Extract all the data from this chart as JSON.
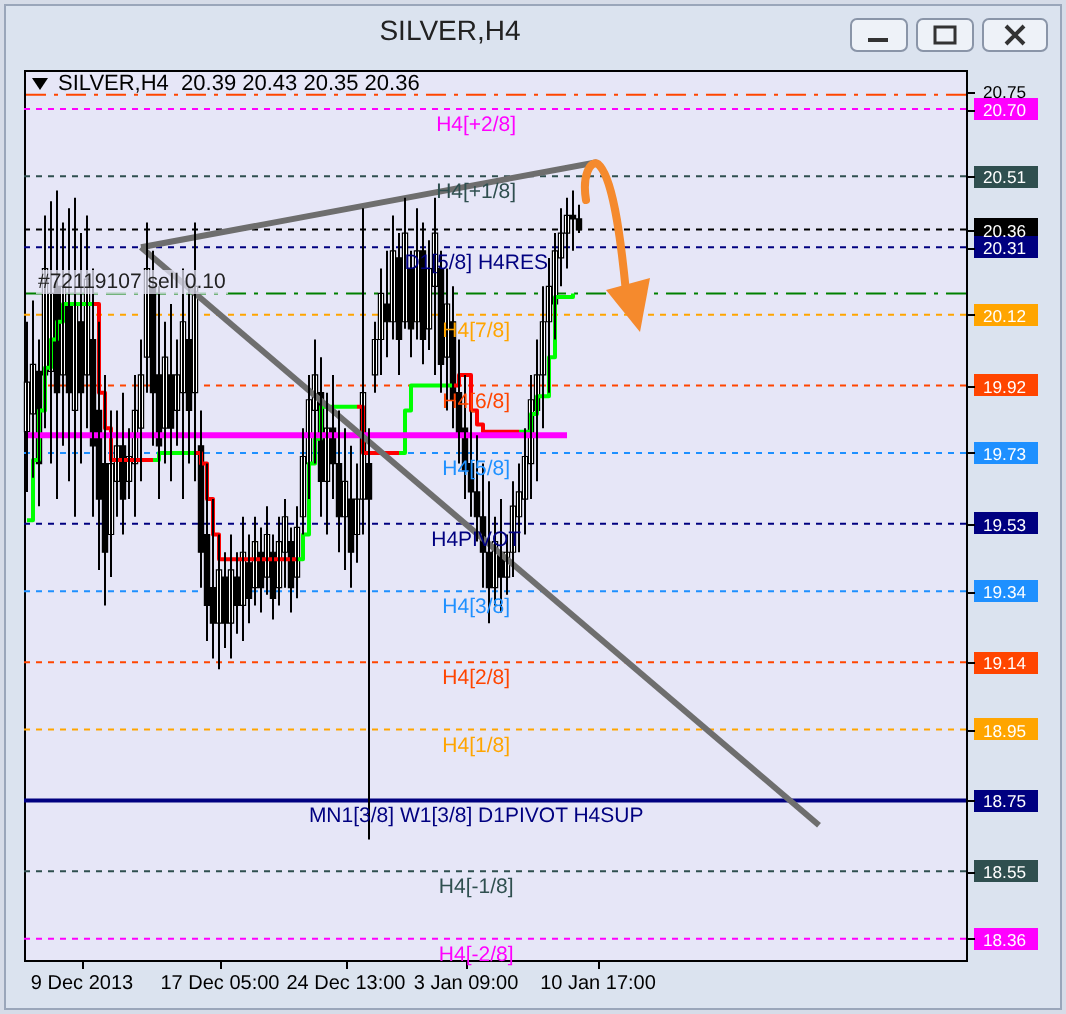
{
  "chart_data": {
    "type": "candlestick",
    "title": "SILVER,H4",
    "subtitle": "SILVER,H4  20.39 20.43 20.35 20.36",
    "categories": [
      null,
      null,
      null,
      null,
      null,
      null,
      null,
      null,
      null,
      "9 Dec 2013",
      null,
      null,
      null,
      null,
      null,
      null,
      null,
      null,
      null,
      null,
      null,
      null,
      null,
      null,
      null,
      null,
      null,
      null,
      null,
      null,
      null,
      null,
      "17 Dec 05:00",
      null,
      null,
      null,
      null,
      null,
      null,
      null,
      null,
      null,
      null,
      null,
      null,
      null,
      null,
      null,
      null,
      null,
      null,
      null,
      null,
      "24 Dec 13:00",
      null,
      null,
      null,
      null,
      null,
      null,
      null,
      null,
      null,
      null,
      null,
      null,
      null,
      null,
      null,
      null,
      null,
      null,
      null,
      "3 Jan 09:00",
      null,
      null,
      null,
      null,
      null,
      null,
      null,
      null,
      null,
      null,
      null,
      null,
      null,
      null,
      null,
      null,
      null,
      null,
      null,
      null,
      null,
      "10 Jan 17:00",
      null,
      null,
      null,
      null,
      null,
      null,
      null,
      null,
      null,
      null,
      null,
      null,
      null,
      null,
      null,
      null,
      null,
      null,
      null,
      null,
      null,
      null,
      null,
      null,
      null,
      null,
      null,
      null,
      null,
      null,
      null,
      null,
      null,
      null,
      null,
      null,
      null,
      null,
      null,
      null,
      null,
      null,
      null,
      null,
      null,
      null,
      null,
      null,
      null,
      null,
      null,
      null,
      null,
      null,
      null,
      null,
      null,
      null,
      null,
      null,
      null
    ],
    "ohlc": [
      [
        19.79,
        20.1,
        19.62,
        19.93
      ],
      [
        19.84,
        20.16,
        19.66,
        19.98
      ],
      [
        19.96,
        20.05,
        19.58,
        19.7
      ],
      [
        19.95,
        20.4,
        19.8,
        20.25
      ],
      [
        19.96,
        20.44,
        19.7,
        20.18
      ],
      [
        20.2,
        20.47,
        19.6,
        19.9
      ],
      [
        19.95,
        20.38,
        19.75,
        20.2
      ],
      [
        20.15,
        20.42,
        19.65,
        19.9
      ],
      [
        19.85,
        20.45,
        19.55,
        20.15
      ],
      [
        20.1,
        20.35,
        19.7,
        19.9
      ],
      [
        19.95,
        20.4,
        19.8,
        20.22
      ],
      [
        20.05,
        20.25,
        19.55,
        19.75
      ],
      [
        19.85,
        20.1,
        19.4,
        19.6
      ],
      [
        19.7,
        19.95,
        19.3,
        19.45
      ],
      [
        19.5,
        19.85,
        19.38,
        19.7
      ],
      [
        19.65,
        19.85,
        19.55,
        19.75
      ],
      [
        19.75,
        19.9,
        19.5,
        19.6
      ],
      [
        19.65,
        19.8,
        19.6,
        19.72
      ],
      [
        19.7,
        19.95,
        19.55,
        19.85
      ],
      [
        19.8,
        20.05,
        19.65,
        19.95
      ],
      [
        20.0,
        20.38,
        19.9,
        20.25
      ],
      [
        20.2,
        20.3,
        19.75,
        19.9
      ],
      [
        19.95,
        20.2,
        19.6,
        19.75
      ],
      [
        19.8,
        20.1,
        19.7,
        20.0
      ],
      [
        19.95,
        20.15,
        19.65,
        19.8
      ],
      [
        19.85,
        20.05,
        19.75,
        19.95
      ],
      [
        19.9,
        20.25,
        19.6,
        20.1
      ],
      [
        20.05,
        20.2,
        19.7,
        19.85
      ],
      [
        19.9,
        20.38,
        19.65,
        20.2
      ],
      [
        19.75,
        19.85,
        19.35,
        19.45
      ],
      [
        19.5,
        19.7,
        19.2,
        19.3
      ],
      [
        19.35,
        19.6,
        19.15,
        19.25
      ],
      [
        19.25,
        19.5,
        19.12,
        19.4
      ],
      [
        19.38,
        19.45,
        19.18,
        19.25
      ],
      [
        19.25,
        19.5,
        19.15,
        19.4
      ],
      [
        19.38,
        19.45,
        19.22,
        19.3
      ],
      [
        19.3,
        19.55,
        19.2,
        19.45
      ],
      [
        19.42,
        19.5,
        19.25,
        19.32
      ],
      [
        19.35,
        19.55,
        19.3,
        19.48
      ],
      [
        19.45,
        19.52,
        19.28,
        19.35
      ],
      [
        19.38,
        19.58,
        19.33,
        19.5
      ],
      [
        19.45,
        19.5,
        19.26,
        19.32
      ],
      [
        19.35,
        19.55,
        19.3,
        19.48
      ],
      [
        19.45,
        19.6,
        19.35,
        19.55
      ],
      [
        19.48,
        19.52,
        19.28,
        19.35
      ],
      [
        19.38,
        19.58,
        19.32,
        19.52
      ],
      [
        19.55,
        19.8,
        19.5,
        19.72
      ],
      [
        19.7,
        19.95,
        19.6,
        19.88
      ],
      [
        19.85,
        20.05,
        19.7,
        19.95
      ],
      [
        19.9,
        20.0,
        19.55,
        19.65
      ],
      [
        19.65,
        19.9,
        19.5,
        19.8
      ],
      [
        19.8,
        19.95,
        19.6,
        19.7
      ],
      [
        19.7,
        19.85,
        19.45,
        19.55
      ],
      [
        19.55,
        19.8,
        19.4,
        19.65
      ],
      [
        19.6,
        19.75,
        19.35,
        19.45
      ],
      [
        19.5,
        19.7,
        19.42,
        19.6
      ],
      [
        19.6,
        20.42,
        19.5,
        19.9
      ],
      [
        19.7,
        19.8,
        18.64,
        19.6
      ],
      [
        19.95,
        20.1,
        19.9,
        20.05
      ],
      [
        20.05,
        20.25,
        19.95,
        20.18
      ],
      [
        20.15,
        20.3,
        20.0,
        20.1
      ],
      [
        20.1,
        20.4,
        20.05,
        20.3
      ],
      [
        20.28,
        20.35,
        19.95,
        20.05
      ],
      [
        20.1,
        20.45,
        20.08,
        20.35
      ],
      [
        20.25,
        20.3,
        20.0,
        20.08
      ],
      [
        20.1,
        20.42,
        20.05,
        20.3
      ],
      [
        20.3,
        20.38,
        19.98,
        20.05
      ],
      [
        20.08,
        20.33,
        20.02,
        20.25
      ],
      [
        20.2,
        20.45,
        19.95,
        20.35
      ],
      [
        20.25,
        20.3,
        19.9,
        19.98
      ],
      [
        20.0,
        20.25,
        19.85,
        20.15
      ],
      [
        20.1,
        20.2,
        19.8,
        19.88
      ],
      [
        19.9,
        20.05,
        19.7,
        19.78
      ],
      [
        19.8,
        19.95,
        19.6,
        19.68
      ],
      [
        19.7,
        19.85,
        19.55,
        19.62
      ],
      [
        19.62,
        19.78,
        19.48,
        19.55
      ],
      [
        19.55,
        19.7,
        19.35,
        19.45
      ],
      [
        19.45,
        19.65,
        19.25,
        19.35
      ],
      [
        19.35,
        19.55,
        19.3,
        19.48
      ],
      [
        19.45,
        19.6,
        19.28,
        19.38
      ],
      [
        19.38,
        19.5,
        19.33,
        19.45
      ],
      [
        19.45,
        19.65,
        19.38,
        19.58
      ],
      [
        19.55,
        19.7,
        19.45,
        19.62
      ],
      [
        19.6,
        19.8,
        19.5,
        19.72
      ],
      [
        19.7,
        19.95,
        19.6,
        19.88
      ],
      [
        19.85,
        20.05,
        19.65,
        19.95
      ],
      [
        19.95,
        20.2,
        19.8,
        20.1
      ],
      [
        20.1,
        20.28,
        19.9,
        20.2
      ],
      [
        20.15,
        20.35,
        20.05,
        20.3
      ],
      [
        20.28,
        20.42,
        20.2,
        20.35
      ],
      [
        20.35,
        20.45,
        20.25,
        20.4
      ],
      [
        20.4,
        20.47,
        20.3,
        20.39
      ],
      [
        20.39,
        20.43,
        20.35,
        20.36
      ],
      null,
      null,
      null,
      null,
      null,
      null,
      null,
      null,
      null,
      null,
      null,
      null,
      null,
      null,
      null,
      null,
      null,
      null,
      null,
      null,
      null,
      null,
      null,
      null,
      null,
      null,
      null,
      null,
      null,
      null,
      null,
      null,
      null,
      null,
      null,
      null,
      null,
      null,
      null,
      null,
      null,
      null,
      null,
      null,
      null,
      null,
      null,
      null,
      null,
      null,
      null,
      null,
      null,
      null,
      null,
      null,
      null,
      null,
      null,
      null,
      null,
      null,
      null,
      null
    ],
    "series": [
      {
        "type": "step",
        "color": "#00ff00",
        "values": [
          19.54,
          19.71,
          19.85,
          19.97,
          20.05,
          20.1,
          20.15,
          20.15,
          20.15,
          20.15,
          20.15,
          20.15,
          null,
          null,
          null,
          null,
          null,
          null,
          null,
          null,
          null,
          19.71,
          19.73,
          19.73,
          19.73,
          19.73,
          19.73,
          19.73,
          19.73,
          null,
          null,
          null,
          null,
          null,
          null,
          null,
          null,
          null,
          null,
          null,
          null,
          null,
          null,
          null,
          null,
          19.43,
          19.5,
          19.7,
          19.77,
          19.86,
          19.86,
          19.86,
          19.86,
          19.86,
          19.86,
          19.86,
          null,
          null,
          null,
          null,
          null,
          null,
          19.73,
          19.85,
          19.92,
          19.92,
          19.92,
          19.92,
          19.92,
          19.92,
          19.92,
          19.92,
          null,
          null,
          null,
          null,
          null,
          null,
          null,
          null,
          null,
          null,
          19.79,
          19.79,
          19.84,
          19.89,
          19.89,
          20.0,
          20.17,
          20.17,
          20.17,
          20.18,
          null,
          null,
          null,
          null,
          null,
          null,
          null,
          null,
          null,
          null,
          null,
          null,
          null,
          null,
          null,
          null,
          null,
          null,
          null,
          null,
          null,
          null,
          null,
          null,
          null,
          null,
          null,
          null,
          null,
          null,
          null,
          null,
          null,
          null,
          null,
          null,
          null,
          null,
          null,
          null,
          null,
          null,
          null,
          null,
          null,
          null,
          null,
          null,
          null,
          null,
          null,
          null,
          null,
          null,
          null,
          null,
          null,
          null,
          null,
          null,
          null,
          null,
          null,
          null,
          null
        ]
      },
      {
        "type": "step",
        "color": "#ff0000",
        "values": [
          null,
          null,
          null,
          null,
          null,
          null,
          null,
          null,
          null,
          null,
          null,
          20.15,
          19.9,
          19.8,
          19.71,
          19.71,
          19.71,
          19.71,
          19.71,
          19.71,
          19.71,
          19.71,
          null,
          null,
          null,
          null,
          null,
          null,
          19.73,
          19.7,
          19.6,
          19.5,
          19.43,
          19.43,
          19.43,
          19.43,
          19.43,
          19.43,
          19.43,
          19.43,
          19.43,
          19.43,
          19.43,
          19.43,
          19.43,
          19.43,
          null,
          null,
          null,
          null,
          null,
          null,
          null,
          null,
          null,
          19.86,
          19.73,
          19.73,
          19.73,
          19.73,
          19.73,
          19.73,
          19.73,
          null,
          null,
          null,
          null,
          null,
          null,
          null,
          null,
          19.92,
          19.95,
          19.95,
          19.85,
          19.81,
          19.79,
          19.79,
          19.79,
          19.79,
          19.79,
          19.79,
          19.79,
          null,
          null,
          null,
          null,
          null,
          null,
          null,
          null,
          null,
          null,
          null,
          null,
          null,
          null,
          null,
          null,
          null,
          null,
          null,
          null,
          null,
          null,
          null,
          null,
          null,
          null,
          null,
          null,
          null,
          null,
          null,
          null,
          null,
          null,
          null,
          null,
          null,
          null,
          null,
          null,
          null,
          null,
          null,
          null,
          null,
          null,
          null,
          null,
          null,
          null,
          null,
          null,
          null,
          null,
          null,
          null,
          null,
          null,
          null,
          null,
          null,
          null,
          null,
          null,
          null,
          null,
          null,
          null,
          null,
          null,
          null,
          null,
          null,
          null
        ]
      },
      {
        "type": "line",
        "color": "#ff00ff",
        "values": [
          19.78,
          null,
          null,
          null,
          null,
          null,
          null,
          null,
          null,
          null,
          null,
          null,
          null,
          null,
          null,
          null,
          null,
          null,
          null,
          null,
          null,
          null,
          null,
          null,
          null,
          null,
          null,
          null,
          null,
          null,
          null,
          null,
          null,
          null,
          null,
          null,
          null,
          null,
          null,
          null,
          null,
          null,
          null,
          null,
          null,
          null,
          null,
          null,
          null,
          null,
          null,
          null,
          null,
          null,
          null,
          null,
          null,
          null,
          null,
          null,
          null,
          null,
          null,
          null,
          null,
          null,
          null,
          null,
          null,
          null,
          null,
          null,
          null,
          null,
          null,
          null,
          null,
          null,
          null,
          null,
          null,
          null,
          null,
          null,
          null,
          null,
          null,
          null,
          null,
          null,
          19.78,
          null,
          null,
          null,
          null,
          null,
          null,
          null,
          null,
          null,
          null,
          null,
          null,
          null,
          null,
          null,
          null,
          null,
          null,
          null,
          null,
          null,
          null,
          null,
          null,
          null,
          null,
          null,
          null,
          null,
          null,
          null,
          null,
          null,
          null,
          null,
          null,
          null,
          null,
          null,
          null,
          null,
          null,
          null,
          null,
          null,
          null,
          null,
          null,
          null,
          null,
          null,
          null,
          null,
          null,
          null,
          null,
          null,
          null,
          null,
          null,
          null,
          null,
          null,
          null,
          null,
          null
        ]
      },
      {
        "type": "line",
        "color": "#6e6e6e",
        "values": [
          null,
          null,
          null,
          null,
          null,
          null,
          null,
          null,
          null,
          null,
          null,
          null,
          null,
          null,
          null,
          null,
          null,
          null,
          null,
          20.31,
          null,
          null,
          null,
          null,
          null,
          null,
          null,
          null,
          null,
          null,
          null,
          null,
          null,
          null,
          null,
          null,
          null,
          null,
          null,
          null,
          null,
          null,
          null,
          null,
          null,
          null,
          null,
          null,
          null,
          null,
          null,
          null,
          null,
          null,
          null,
          null,
          null,
          null,
          null,
          null,
          null,
          null,
          null,
          null,
          null,
          null,
          null,
          null,
          null,
          null,
          null,
          null,
          null,
          null,
          null,
          null,
          null,
          null,
          null,
          null,
          null,
          null,
          null,
          null,
          null,
          null,
          null,
          null,
          null,
          null,
          null,
          null,
          null,
          null,
          null,
          20.55,
          null,
          null,
          null,
          null,
          null,
          null,
          null,
          null,
          null,
          null,
          null,
          null,
          null,
          null,
          null,
          null,
          null,
          null,
          null,
          null,
          null,
          null,
          null,
          null,
          null,
          null,
          null,
          null,
          null,
          null,
          null,
          null,
          null,
          null,
          null,
          null,
          null,
          null,
          null,
          null,
          null,
          null,
          null,
          null,
          null,
          null,
          null,
          null,
          null,
          null,
          null,
          null,
          null,
          null,
          null,
          null,
          null,
          null,
          null,
          null,
          null
        ]
      },
      {
        "type": "line",
        "color": "#6e6e6e",
        "values": [
          null,
          null,
          null,
          null,
          null,
          null,
          null,
          null,
          null,
          null,
          null,
          null,
          null,
          null,
          null,
          null,
          null,
          null,
          null,
          20.31,
          null,
          null,
          null,
          null,
          null,
          null,
          null,
          null,
          null,
          null,
          null,
          null,
          null,
          null,
          null,
          null,
          null,
          null,
          null,
          null,
          null,
          null,
          null,
          null,
          null,
          null,
          null,
          null,
          null,
          null,
          null,
          null,
          null,
          null,
          null,
          null,
          null,
          null,
          null,
          null,
          null,
          null,
          null,
          null,
          null,
          null,
          null,
          null,
          null,
          null,
          null,
          null,
          null,
          null,
          null,
          null,
          null,
          null,
          null,
          null,
          null,
          null,
          null,
          null,
          null,
          null,
          null,
          null,
          null,
          null,
          null,
          null,
          null,
          null,
          null,
          null,
          null,
          null,
          null,
          null,
          null,
          null,
          null,
          null,
          null,
          null,
          null,
          null,
          null,
          null,
          null,
          null,
          null,
          null,
          null,
          null,
          null,
          null,
          null,
          null,
          null,
          null,
          null,
          null,
          null,
          null,
          null,
          null,
          null,
          null,
          null,
          null,
          18.68,
          null,
          null,
          null,
          null,
          null,
          null,
          null,
          null,
          null,
          null,
          null,
          null,
          null,
          null,
          null,
          null,
          null,
          null,
          null,
          null,
          null,
          null,
          null,
          null
        ]
      }
    ],
    "ylim": [
      18.3,
      20.81
    ],
    "yticks": [
      20.75,
      {
        "value": 20.7,
        "label": "20.70"
      },
      20.51,
      20.36,
      20.31,
      20.12,
      19.92,
      19.73,
      19.53,
      19.34,
      19.14,
      18.95,
      18.75,
      18.55,
      18.36
    ],
    "ref_lines": [
      {
        "axis": "y",
        "value": 20.74,
        "color": "#ff4500",
        "line_style": "dashed"
      },
      {
        "axis": "y",
        "value": 20.7,
        "label": "H4[+2/8]",
        "color": "#ff00ff",
        "line_style": "dotted"
      },
      {
        "axis": "y",
        "value": 20.51,
        "label": "H4[+1/8]",
        "color": "#2f4f4f",
        "line_style": "dotted"
      },
      {
        "axis": "y",
        "value": 20.36,
        "color": "#000000",
        "line_style": "dotted"
      },
      {
        "axis": "y",
        "value": 20.31,
        "label": "D1[5/8] H4RES",
        "color": "#000080",
        "line_style": "dotted"
      },
      {
        "axis": "y",
        "value": 20.18,
        "color": "#008000",
        "line_style": "dashed"
      },
      {
        "axis": "y",
        "value": 20.12,
        "label": "H4[7/8]",
        "color": "#ffa500",
        "line_style": "dotted"
      },
      {
        "axis": "y",
        "value": 19.92,
        "label": "H4[6/8]",
        "color": "#ff4500",
        "line_style": "dotted"
      },
      {
        "axis": "y",
        "value": 19.73,
        "label": "H4[5/8]",
        "color": "#1e90ff",
        "line_style": "dotted"
      },
      {
        "axis": "y",
        "value": 19.53,
        "label": "H4PIVOT",
        "color": "#000080",
        "line_style": "dotted"
      },
      {
        "axis": "y",
        "value": 19.34,
        "label": "H4[3/8]",
        "color": "#1e90ff",
        "line_style": "dotted"
      },
      {
        "axis": "y",
        "value": 19.14,
        "label": "H4[2/8]",
        "color": "#ff4500",
        "line_style": "dotted"
      },
      {
        "axis": "y",
        "value": 18.95,
        "label": "H4[1/8]",
        "color": "#ffa500",
        "line_style": "dotted"
      },
      {
        "axis": "y",
        "value": 18.75,
        "label": "MN1[3/8] W1[3/8] D1PIVOT H4SUP",
        "color": "#000080",
        "line_style": "solid"
      },
      {
        "axis": "y",
        "value": 18.55,
        "label": "H4[-1/8]",
        "color": "#2f4f4f",
        "line_style": "dotted"
      },
      {
        "axis": "y",
        "value": 18.36,
        "label": "H4[-2/8]",
        "color": "#ff00ff",
        "line_style": "dotted"
      }
    ],
    "annotations": [
      {
        "text": "#72119107 sell 0.10",
        "y": 20.21
      }
    ]
  }
}
